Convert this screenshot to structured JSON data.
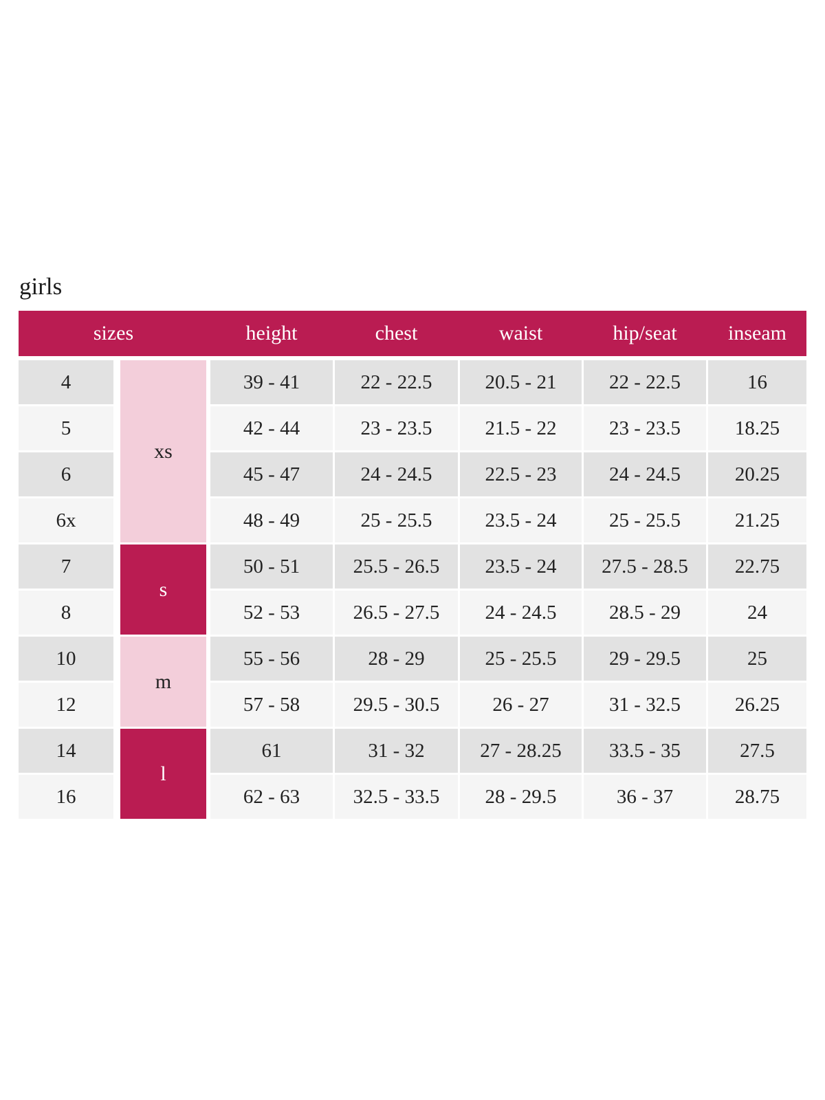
{
  "page": {
    "title": "girls"
  },
  "colors": {
    "header_bg": "#ba1c52",
    "header_text": "#ffffff",
    "group_pink": "#f3ceda",
    "group_crimson": "#ba1c52",
    "row_dark": "#e2e2e2",
    "row_light": "#f5f5f5",
    "body_text": "#222222"
  },
  "table": {
    "headers": [
      {
        "label": "sizes"
      },
      {
        "label": "height"
      },
      {
        "label": "chest"
      },
      {
        "label": "waist"
      },
      {
        "label": "hip/seat"
      },
      {
        "label": "inseam"
      }
    ],
    "groups": [
      {
        "label": "xs",
        "span": 4
      },
      {
        "label": "s",
        "span": 2
      },
      {
        "label": "m",
        "span": 2
      },
      {
        "label": "l",
        "span": 2
      }
    ],
    "rows": [
      {
        "size": "4",
        "height": "39 - 41",
        "chest": "22 - 22.5",
        "waist": "20.5 - 21",
        "hip_seat": "22 - 22.5",
        "inseam": "16"
      },
      {
        "size": "5",
        "height": "42 - 44",
        "chest": "23 - 23.5",
        "waist": "21.5 - 22",
        "hip_seat": "23 - 23.5",
        "inseam": "18.25"
      },
      {
        "size": "6",
        "height": "45 - 47",
        "chest": "24 - 24.5",
        "waist": "22.5 - 23",
        "hip_seat": "24 - 24.5",
        "inseam": "20.25"
      },
      {
        "size": "6x",
        "height": "48 - 49",
        "chest": "25 - 25.5",
        "waist": "23.5 - 24",
        "hip_seat": "25 - 25.5",
        "inseam": "21.25"
      },
      {
        "size": "7",
        "height": "50 - 51",
        "chest": "25.5 - 26.5",
        "waist": "23.5 - 24",
        "hip_seat": "27.5 - 28.5",
        "inseam": "22.75"
      },
      {
        "size": "8",
        "height": "52 - 53",
        "chest": "26.5 - 27.5",
        "waist": "24 - 24.5",
        "hip_seat": "28.5 - 29",
        "inseam": "24"
      },
      {
        "size": "10",
        "height": "55 - 56",
        "chest": "28 - 29",
        "waist": "25 - 25.5",
        "hip_seat": "29 - 29.5",
        "inseam": "25"
      },
      {
        "size": "12",
        "height": "57 - 58",
        "chest": "29.5 - 30.5",
        "waist": "26 - 27",
        "hip_seat": "31 - 32.5",
        "inseam": "26.25"
      },
      {
        "size": "14",
        "height": "61",
        "chest": "31 - 32",
        "waist": "27 - 28.25",
        "hip_seat": "33.5 - 35",
        "inseam": "27.5"
      },
      {
        "size": "16",
        "height": "62 - 63",
        "chest": "32.5 - 33.5",
        "waist": "28 - 29.5",
        "hip_seat": "36 - 37",
        "inseam": "28.75"
      }
    ]
  }
}
